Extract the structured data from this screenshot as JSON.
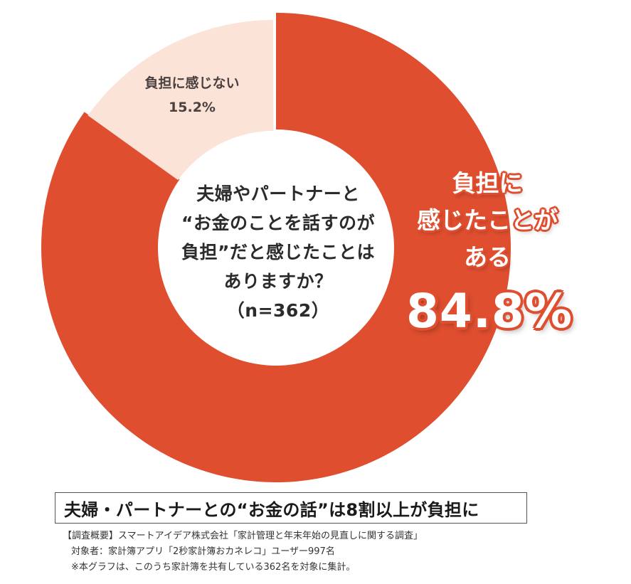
{
  "chart_data": {
    "type": "pie",
    "subtype": "donut",
    "title": "夫婦やパートナーと“お金のことを話すのが負担”だと感じたことはありますか？",
    "sample_size": "n=362",
    "categories": [
      "負担に感じたことがある",
      "負担に感じない"
    ],
    "values": [
      84.8,
      15.2
    ],
    "unit": "%",
    "colors": [
      "#df4e2f",
      "#fbe3d7"
    ],
    "start_angle": "12 o'clock, clockwise",
    "legend": "none (direct labels)"
  },
  "colors": {
    "major": "#df4e2f",
    "minor": "#fbe3d7",
    "text_dark": "#2b2b2b",
    "minor_text": "#4a4040"
  },
  "center": {
    "lines": [
      "夫婦やパートナーと",
      "“お金のことを話すのが",
      "負担”だと感じたことは",
      "ありますか？",
      "（n=362）"
    ]
  },
  "minor_label": {
    "text": "負担に感じない",
    "value": "15.2%"
  },
  "major_label": {
    "lines": [
      "負担に",
      "感じたことが",
      "ある"
    ],
    "value": "84.8%"
  },
  "headline": "夫婦・パートナーとの“お金の話”は8割以上が負担に",
  "footnote": {
    "lines": [
      "【調査概要】スマートアイデア株式会社「家計管理と年末年始の見直しに関する調査」",
      "対象者：家計簿アプリ「2秒家計簿おカネレコ」ユーザー997名",
      "※本グラフは、このうち家計簿を共有している362名を対象に集計。"
    ]
  }
}
